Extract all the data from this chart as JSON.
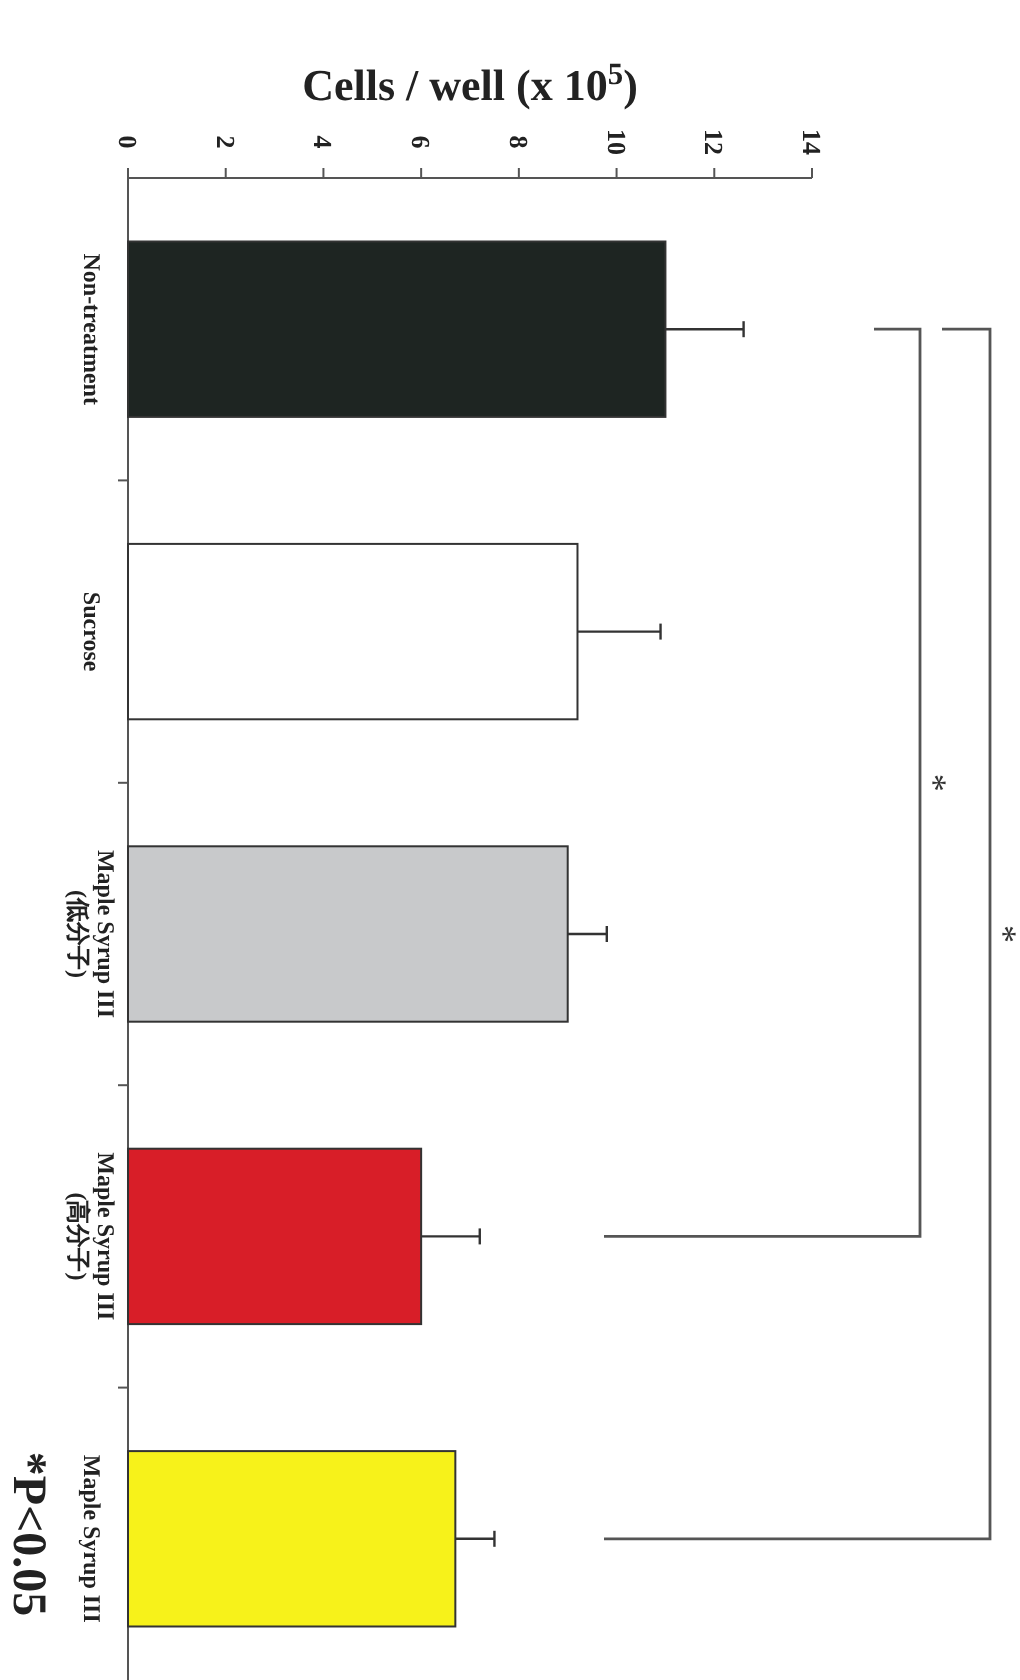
{
  "chart_data": {
    "type": "bar",
    "orientation": "horizontal",
    "xlabel": "Cells / well (x 10$^{5}$)",
    "categories": [
      "Non-treatment",
      "Sucrose",
      "Maple Syrup III\n(低分子)",
      "Maple Syrup III\n(高分子)",
      "Maple Syrup III"
    ],
    "values": [
      11.0,
      9.2,
      9.0,
      6.0,
      6.7
    ],
    "errors": [
      1.6,
      1.7,
      0.8,
      1.2,
      0.8
    ],
    "colors": [
      "#1e2522",
      "#ffffff",
      "#c8c9cb",
      "#d81e28",
      "#f7f21a"
    ],
    "xlim": [
      0,
      14
    ],
    "xticks": [
      0,
      2,
      4,
      6,
      8,
      10,
      12,
      14
    ],
    "annotations": [
      "*",
      "*",
      "*P<0.05"
    ],
    "grid": false
  }
}
